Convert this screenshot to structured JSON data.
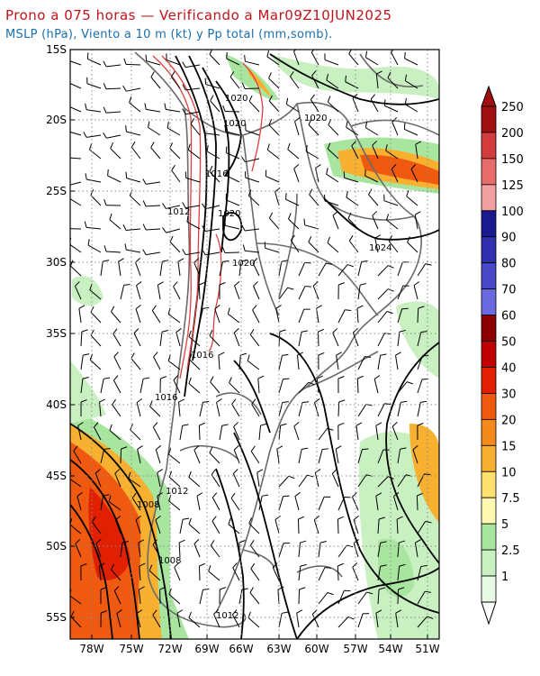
{
  "header": {
    "title": "Prono a 075 horas — Verificando a Mar09Z10JUN2025",
    "subtitle": "MSLP (hPa), Viento a 10 m (kt) y Pp total (mm,somb)."
  },
  "axes": {
    "lat_labels": [
      "15S",
      "20S",
      "25S",
      "30S",
      "35S",
      "40S",
      "45S",
      "50S",
      "55S"
    ],
    "lon_labels": [
      "78W",
      "75W",
      "72W",
      "69W",
      "66W",
      "63W",
      "60W",
      "57W",
      "54W",
      "51W"
    ]
  },
  "isobar_labels": [
    "1020",
    "1020",
    "1020",
    "1016",
    "1012",
    "1020",
    "1024",
    "1020",
    "1016",
    "1016",
    "1012",
    "1008",
    "1008",
    "1012"
  ],
  "legend": {
    "values": [
      "250",
      "200",
      "150",
      "125",
      "100",
      "90",
      "80",
      "70",
      "60",
      "50",
      "40",
      "30",
      "20",
      "15",
      "10",
      "7.5",
      "5",
      "2.5",
      "1"
    ],
    "colors": [
      "#a01010",
      "#d23c3c",
      "#e86c6c",
      "#f0a0a0",
      "#1a1a90",
      "#3030b0",
      "#4848c8",
      "#6a6ae0",
      "#8b0000",
      "#c00000",
      "#e02000",
      "#f05a10",
      "#f58a1c",
      "#f8b030",
      "#fce070",
      "#fff8b0",
      "#a8e6a0",
      "#c8f0c0",
      "#e8fae4"
    ]
  },
  "colors": {
    "title": "#c0141c",
    "subtitle": "#1a6fb0",
    "coast": "#6a6a6a",
    "isobar": "#000000"
  }
}
